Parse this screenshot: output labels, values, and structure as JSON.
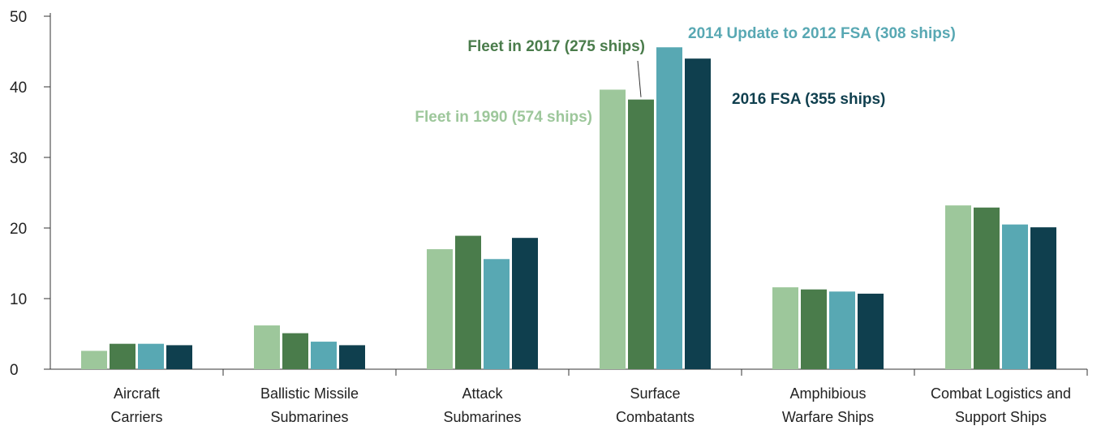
{
  "chart_data": {
    "type": "bar",
    "title": "",
    "xlabel": "",
    "ylabel": "",
    "ylim": [
      0,
      50
    ],
    "yticks": [
      0,
      10,
      20,
      30,
      40,
      50
    ],
    "grid": false,
    "legend": "inline-annotations",
    "categories": [
      [
        "Aircraft",
        "Carriers"
      ],
      [
        "Ballistic Missile",
        "Submarines"
      ],
      [
        "Attack",
        "Submarines"
      ],
      [
        "Surface",
        "Combatants"
      ],
      [
        "Amphibious",
        "Warfare Ships"
      ],
      [
        "Combat Logistics and",
        "Support Ships"
      ]
    ],
    "series": [
      {
        "name": "Fleet in 1990 (574 ships)",
        "color": "#9dc79b",
        "values": [
          2.6,
          6.2,
          17.0,
          39.6,
          11.6,
          23.2
        ]
      },
      {
        "name": "Fleet in 2017 (275 ships)",
        "color": "#4a7c4b",
        "values": [
          3.6,
          5.1,
          18.9,
          38.2,
          11.3,
          22.9
        ]
      },
      {
        "name": "2014 Update to 2012 FSA (308 ships)",
        "color": "#58a8b3",
        "values": [
          3.6,
          3.9,
          15.6,
          45.6,
          11.0,
          20.5
        ]
      },
      {
        "name": "2016 FSA (355 ships)",
        "color": "#0f3f4e",
        "values": [
          3.4,
          3.4,
          18.6,
          44.0,
          10.7,
          20.1
        ]
      }
    ]
  }
}
